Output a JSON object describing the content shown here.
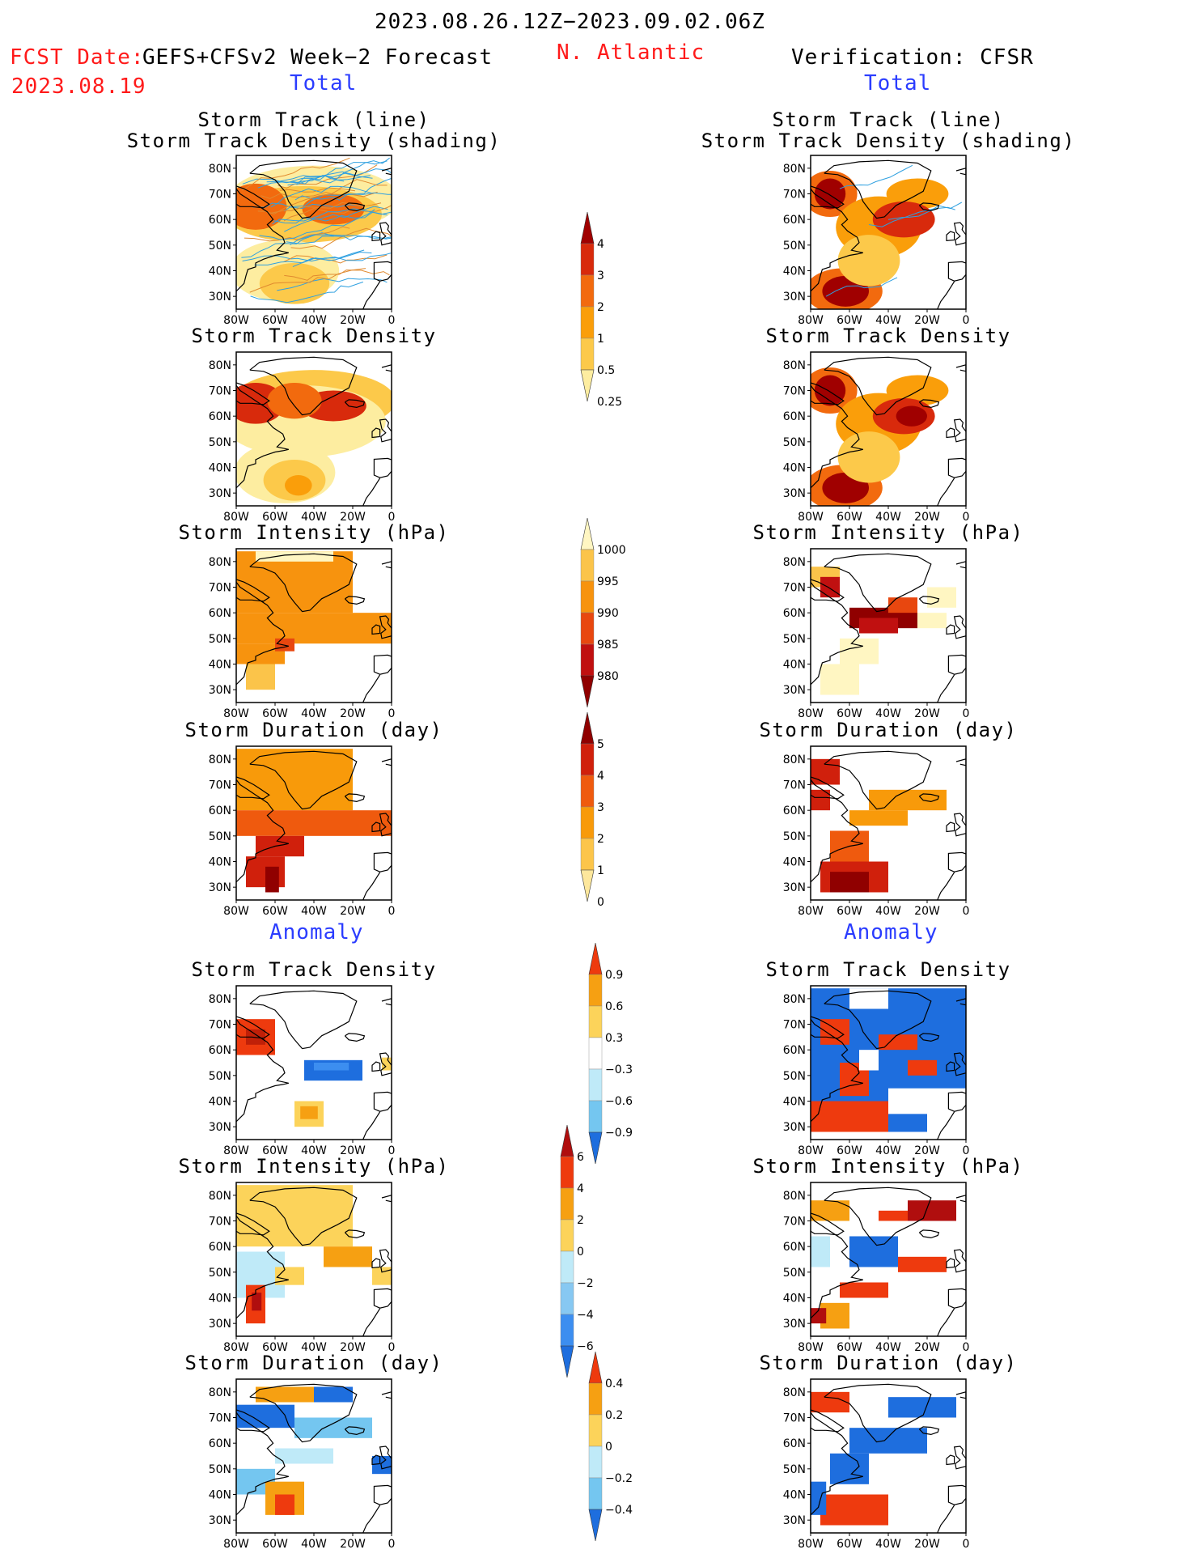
{
  "header": {
    "period": "2023.08.26.12Z−2023.09.02.06Z",
    "fcst_label": "FCST Date:",
    "model": "GEFS+CFSv2 Week−2 Forecast",
    "fcst_date": "2023.08.19",
    "region": "N. Atlantic",
    "verification": "Verification: CFSR",
    "left_total": "Total",
    "right_total": "Total",
    "left_anomaly": "Anomaly",
    "right_anomaly": "Anomaly"
  },
  "axes": {
    "lat_ticks": [
      "80N",
      "70N",
      "60N",
      "50N",
      "40N",
      "30N"
    ],
    "lon_ticks": [
      "80W",
      "60W",
      "40W",
      "20W",
      "0"
    ]
  },
  "panels": {
    "left": [
      {
        "title1": "Storm Track (line)",
        "title2": "Storm Track Density (shading)",
        "field": "track"
      },
      {
        "title1": "Storm Track Density",
        "title2": "",
        "field": "density"
      },
      {
        "title1": "Storm Intensity (hPa)",
        "title2": "",
        "field": "intensity"
      },
      {
        "title1": "Storm Duration (day)",
        "title2": "",
        "field": "duration"
      },
      {
        "title1": "Storm Track Density",
        "title2": "",
        "field": "density_anom"
      },
      {
        "title1": "Storm Intensity (hPa)",
        "title2": "",
        "field": "intensity_anom"
      },
      {
        "title1": "Storm Duration (day)",
        "title2": "",
        "field": "duration_anom"
      }
    ],
    "right": [
      {
        "title1": "Storm Track (line)",
        "title2": "Storm Track Density (shading)",
        "field": "track"
      },
      {
        "title1": "Storm Track Density",
        "title2": "",
        "field": "density"
      },
      {
        "title1": "Storm Intensity (hPa)",
        "title2": "",
        "field": "intensity"
      },
      {
        "title1": "Storm Duration (day)",
        "title2": "",
        "field": "duration"
      },
      {
        "title1": "Storm Track Density",
        "title2": "",
        "field": "density_anom"
      },
      {
        "title1": "Storm Intensity (hPa)",
        "title2": "",
        "field": "intensity_anom"
      },
      {
        "title1": "Storm Duration (day)",
        "title2": "",
        "field": "duration_anom"
      }
    ]
  },
  "colorbars": [
    {
      "name": "density",
      "labels": [
        "4",
        "3",
        "2",
        "1",
        "0.5",
        "0.25"
      ],
      "colors": [
        "#a00000",
        "#d82a0c",
        "#f26a0e",
        "#fa9e0a",
        "#fcc94a",
        "#fdeda0"
      ]
    },
    {
      "name": "intensity",
      "labels": [
        "1000",
        "995",
        "990",
        "985",
        "980"
      ],
      "colors": [
        "#fff6c2",
        "#fbc44a",
        "#f7930e",
        "#e8470f",
        "#c01010",
        "#900000"
      ]
    },
    {
      "name": "duration",
      "labels": [
        "5",
        "4",
        "3",
        "2",
        "1",
        "0"
      ],
      "colors": [
        "#900000",
        "#d0200c",
        "#ef5a0e",
        "#f89a0a",
        "#fcc54a",
        "#fde79c"
      ]
    },
    {
      "name": "density_anom",
      "labels": [
        "0.9",
        "0.6",
        "0.3",
        "−0.3",
        "−0.6",
        "−0.9"
      ],
      "colors": [
        "#ee3a0e",
        "#f6a012",
        "#fcd35a",
        "#ffffff",
        "#bfeaf8",
        "#74c6f0",
        "#1e6ede"
      ]
    },
    {
      "name": "intensity_anom",
      "labels": [
        "6",
        "4",
        "2",
        "0",
        "−2",
        "−4",
        "−6"
      ],
      "colors": [
        "#b00e0e",
        "#ee3a0e",
        "#f6a012",
        "#fcd35a",
        "#bfeaf8",
        "#87c8f2",
        "#3c8ef0",
        "#1e6ede"
      ]
    },
    {
      "name": "duration_anom",
      "labels": [
        "0.4",
        "0.2",
        "0",
        "−0.2",
        "−0.4"
      ],
      "colors": [
        "#ee3a0e",
        "#f6a012",
        "#fcd35a",
        "#bfeaf8",
        "#74c6f0",
        "#1e6ede"
      ]
    }
  ],
  "colors": {
    "title_red": "#ff1a1a",
    "title_blue": "#2a3cff",
    "track_line": "#2fa0e0",
    "track_line2": "#e08a30"
  }
}
